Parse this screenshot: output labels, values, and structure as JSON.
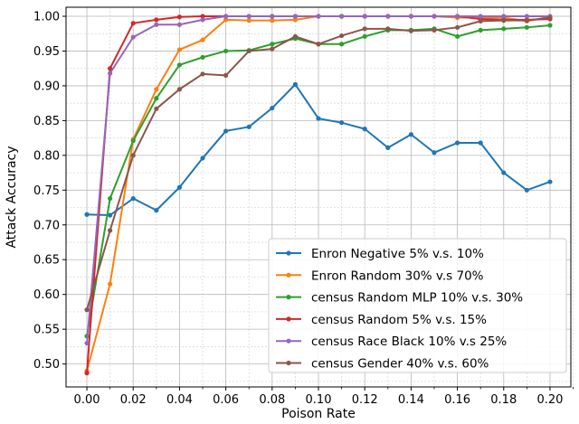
{
  "chart_data": {
    "type": "line",
    "xlabel": "Poison Rate",
    "ylabel": "Attack Accuracy",
    "xlim": [
      -0.009,
      0.209
    ],
    "ylim": [
      0.467,
      1.013
    ],
    "xticks": [
      0.0,
      0.02,
      0.04,
      0.06,
      0.08,
      0.1,
      0.12,
      0.14,
      0.16,
      0.18,
      0.2
    ],
    "xtick_labels": [
      "0.00",
      "0.02",
      "0.04",
      "0.06",
      "0.08",
      "0.10",
      "0.12",
      "0.14",
      "0.16",
      "0.18",
      "0.20"
    ],
    "yticks": [
      0.5,
      0.55,
      0.6,
      0.65,
      0.7,
      0.75,
      0.8,
      0.85,
      0.9,
      0.95,
      1.0
    ],
    "ytick_labels": [
      "0.50",
      "0.55",
      "0.60",
      "0.65",
      "0.70",
      "0.75",
      "0.80",
      "0.85",
      "0.90",
      "0.95",
      "1.00"
    ],
    "grid": true,
    "legend_position": "lower-right",
    "x": [
      0.0,
      0.01,
      0.02,
      0.03,
      0.04,
      0.05,
      0.06,
      0.07,
      0.08,
      0.09,
      0.1,
      0.11,
      0.12,
      0.13,
      0.14,
      0.15,
      0.16,
      0.17,
      0.18,
      0.19,
      0.2
    ],
    "series": [
      {
        "name": "Enron Negative 5% v.s. 10%",
        "color": "#1f77b4",
        "values": [
          0.715,
          0.714,
          0.738,
          0.721,
          0.754,
          0.796,
          0.835,
          0.841,
          0.868,
          0.902,
          0.853,
          0.847,
          0.838,
          0.811,
          0.83,
          0.804,
          0.818,
          0.818,
          0.775,
          0.75,
          0.762
        ]
      },
      {
        "name": "Enron Random 30% v.s 70%",
        "color": "#ff7f0e",
        "values": [
          0.49,
          0.615,
          0.823,
          0.895,
          0.952,
          0.966,
          0.995,
          0.994,
          0.994,
          0.995,
          1.0,
          1.0,
          1.0,
          1.0,
          1.0,
          1.0,
          0.998,
          0.998,
          0.998,
          0.993,
          0.999
        ]
      },
      {
        "name": "census Random MLP 10% v.s. 30%",
        "color": "#2ca02c",
        "values": [
          0.54,
          0.738,
          0.821,
          0.882,
          0.93,
          0.941,
          0.95,
          0.951,
          0.96,
          0.968,
          0.96,
          0.96,
          0.971,
          0.98,
          0.98,
          0.982,
          0.971,
          0.98,
          0.982,
          0.984,
          0.987
        ]
      },
      {
        "name": "census Random 5% v.s. 15%",
        "color": "#d62728",
        "values": [
          0.487,
          0.925,
          0.99,
          0.995,
          0.999,
          1.0,
          1.0,
          1.0,
          1.0,
          1.0,
          1.0,
          1.0,
          1.0,
          1.0,
          1.0,
          1.0,
          1.0,
          0.996,
          0.995,
          0.995,
          0.996
        ]
      },
      {
        "name": "census Race Black 10% v.s 25%",
        "color": "#9467bd",
        "values": [
          0.53,
          0.918,
          0.97,
          0.988,
          0.988,
          0.995,
          1.0,
          1.0,
          1.0,
          1.0,
          1.0,
          1.0,
          1.0,
          1.0,
          1.0,
          1.0,
          1.0,
          1.0,
          1.0,
          1.0,
          1.0
        ]
      },
      {
        "name": "census Gender 40% v.s. 60%",
        "color": "#8c564b",
        "values": [
          0.578,
          0.692,
          0.8,
          0.867,
          0.895,
          0.917,
          0.915,
          0.95,
          0.953,
          0.971,
          0.96,
          0.972,
          0.982,
          0.982,
          0.979,
          0.98,
          0.984,
          0.993,
          0.994,
          0.994,
          0.998
        ]
      }
    ]
  }
}
